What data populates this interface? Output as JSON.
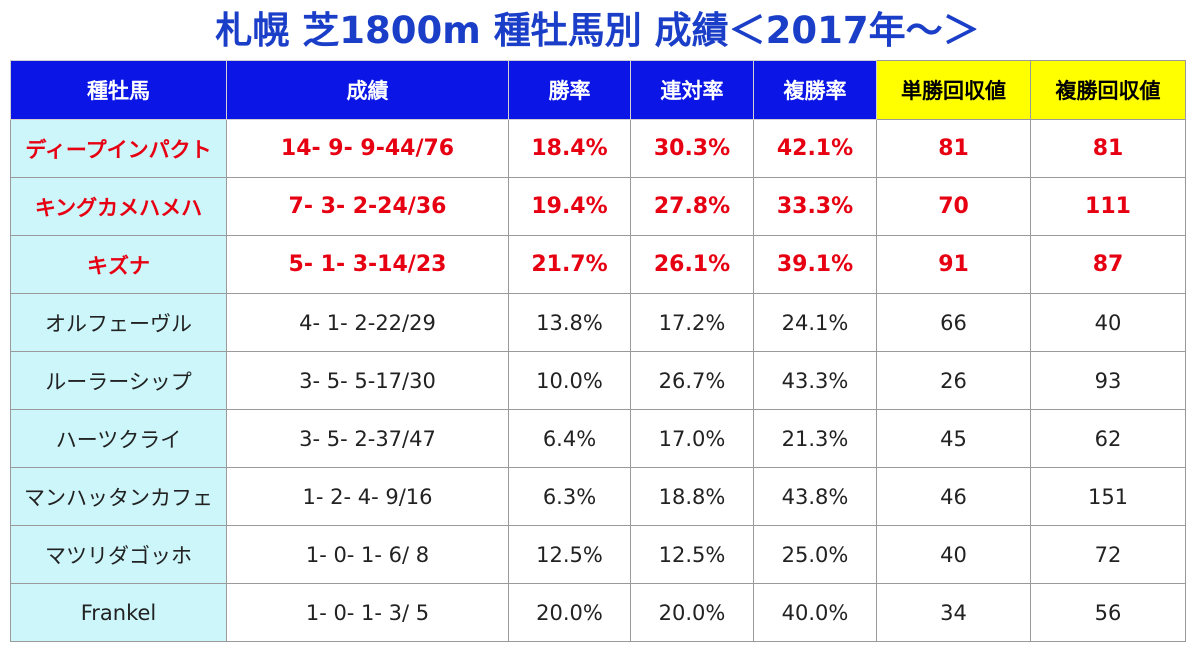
{
  "title": "札幌 芝1800m 種牡馬別 成績＜2017年〜＞",
  "headers": [
    "種牡馬",
    "成績",
    "勝率",
    "連対率",
    "複勝率",
    "単勝回収値",
    "複勝回収値"
  ],
  "colors": {
    "title": "#1a3ec8",
    "header_bg": "#0a15e6",
    "header_highlight_bg": "#ffff00",
    "name_cell_bg": "#ccf6fa",
    "top_row_text": "#e60012"
  },
  "rows": [
    {
      "sire": "ディープインパクト",
      "record": "14- 9- 9-44/76",
      "win": "18.4%",
      "rentai": "30.3%",
      "fukusho": "42.1%",
      "tansho_ret": "81",
      "fukusho_ret": "81"
    },
    {
      "sire": "キングカメハメハ",
      "record": "7- 3- 2-24/36",
      "win": "19.4%",
      "rentai": "27.8%",
      "fukusho": "33.3%",
      "tansho_ret": "70",
      "fukusho_ret": "111"
    },
    {
      "sire": "キズナ",
      "record": "5- 1- 3-14/23",
      "win": "21.7%",
      "rentai": "26.1%",
      "fukusho": "39.1%",
      "tansho_ret": "91",
      "fukusho_ret": "87"
    },
    {
      "sire": "オルフェーヴル",
      "record": "4- 1- 2-22/29",
      "win": "13.8%",
      "rentai": "17.2%",
      "fukusho": "24.1%",
      "tansho_ret": "66",
      "fukusho_ret": "40"
    },
    {
      "sire": "ルーラーシップ",
      "record": "3- 5- 5-17/30",
      "win": "10.0%",
      "rentai": "26.7%",
      "fukusho": "43.3%",
      "tansho_ret": "26",
      "fukusho_ret": "93"
    },
    {
      "sire": "ハーツクライ",
      "record": "3- 5- 2-37/47",
      "win": "6.4%",
      "rentai": "17.0%",
      "fukusho": "21.3%",
      "tansho_ret": "45",
      "fukusho_ret": "62"
    },
    {
      "sire": "マンハッタンカフェ",
      "record": "1- 2- 4- 9/16",
      "win": "6.3%",
      "rentai": "18.8%",
      "fukusho": "43.8%",
      "tansho_ret": "46",
      "fukusho_ret": "151"
    },
    {
      "sire": "マツリダゴッホ",
      "record": "1- 0- 1- 6/ 8",
      "win": "12.5%",
      "rentai": "12.5%",
      "fukusho": "25.0%",
      "tansho_ret": "40",
      "fukusho_ret": "72"
    },
    {
      "sire": "Frankel",
      "record": "1- 0- 1- 3/ 5",
      "win": "20.0%",
      "rentai": "20.0%",
      "fukusho": "40.0%",
      "tansho_ret": "34",
      "fukusho_ret": "56"
    }
  ]
}
